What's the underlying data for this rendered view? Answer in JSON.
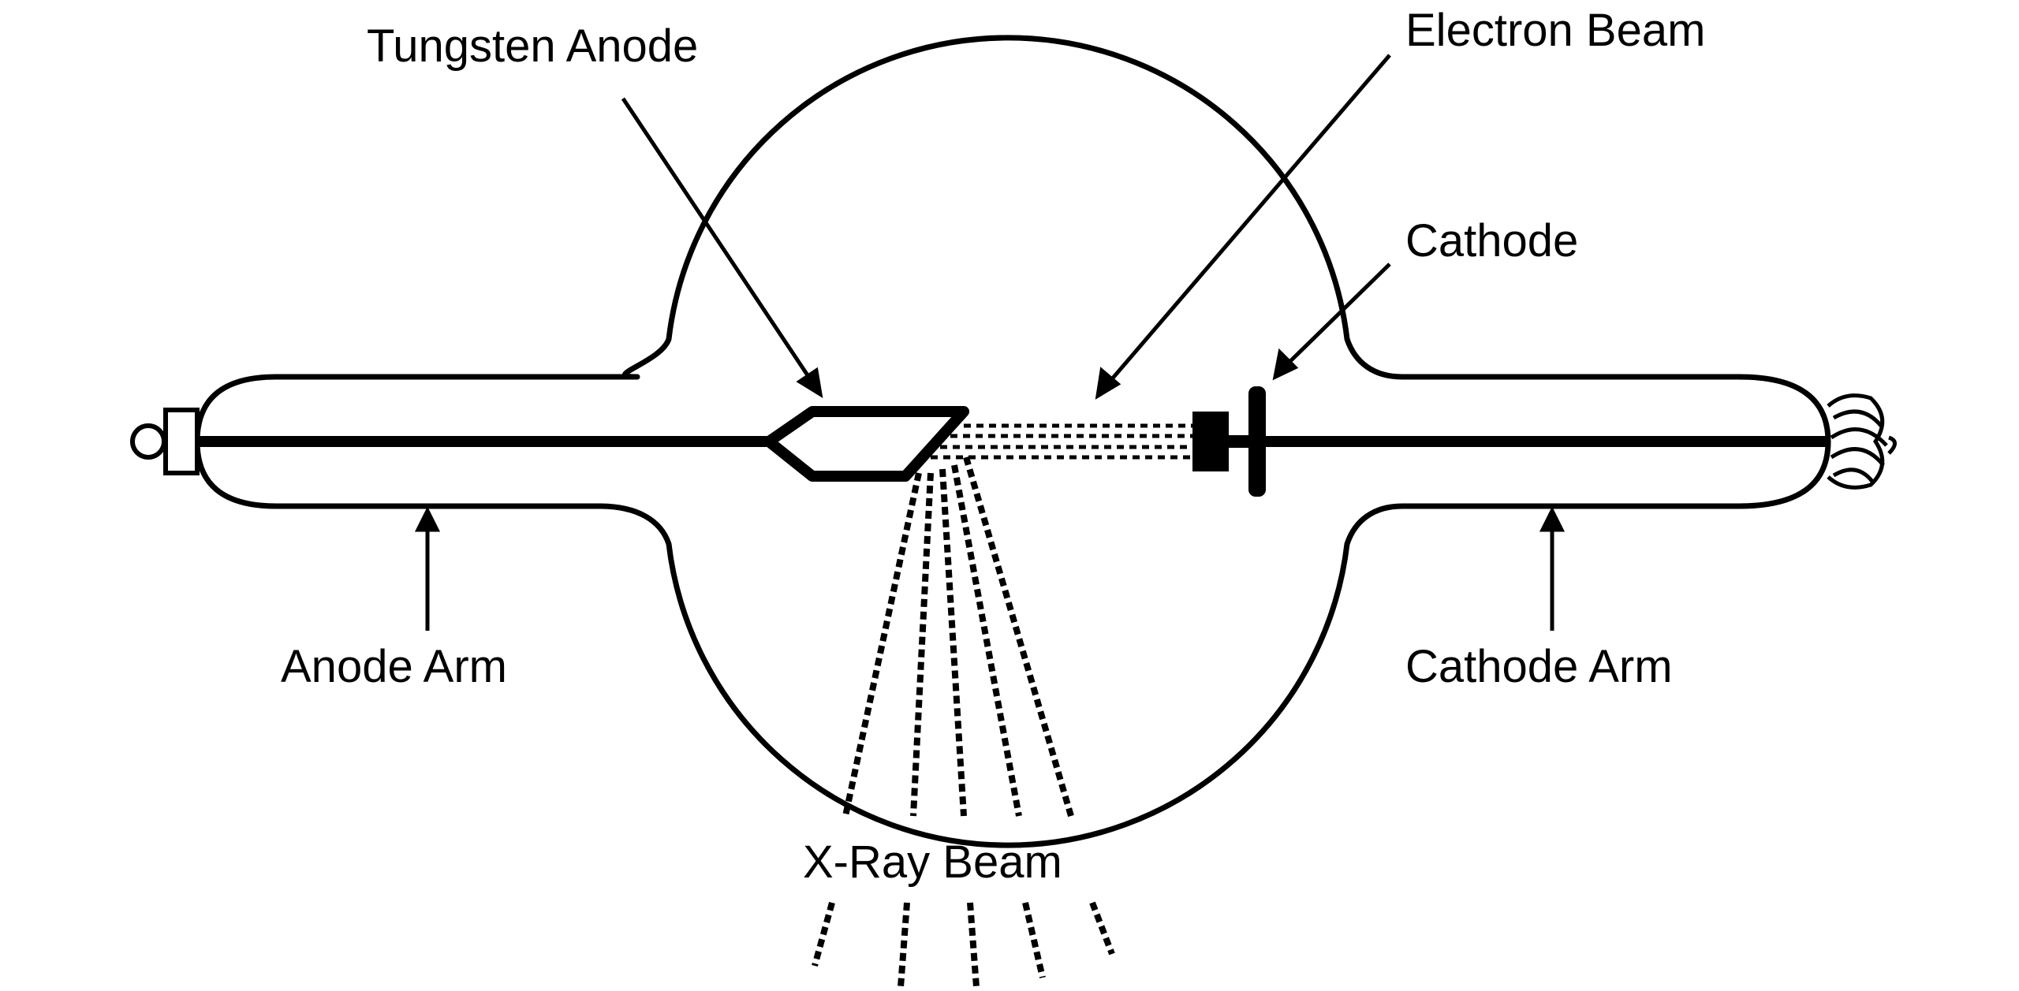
{
  "colors": {
    "background": "#ffffff",
    "ink": "#000000"
  },
  "labels": {
    "tungsten_anode": "Tungsten Anode",
    "electron_beam": "Electron Beam",
    "cathode": "Cathode",
    "anode_arm": "Anode Arm",
    "cathode_arm": "Cathode Arm",
    "xray_beam": "X-Ray Beam"
  }
}
